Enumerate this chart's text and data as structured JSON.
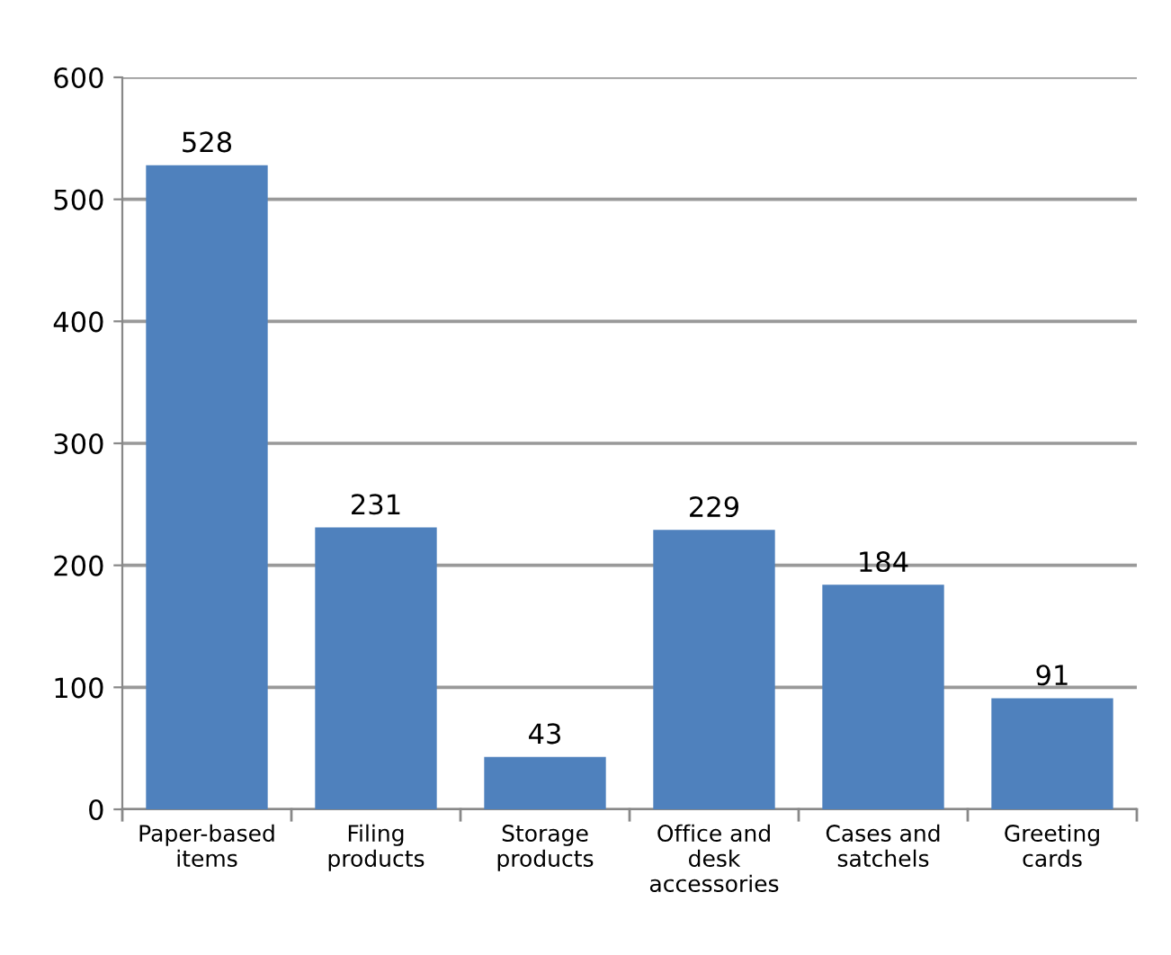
{
  "chart_data": {
    "type": "bar",
    "categories": [
      "Paper-based\nitems",
      "Filing\nproducts",
      "Storage\nproducts",
      "Office and\ndesk\naccessories",
      "Cases and\nsatchels",
      "Greeting\ncards"
    ],
    "values": [
      528,
      231,
      43,
      229,
      184,
      91
    ],
    "color": "#4f81bd",
    "ylim": [
      0,
      600
    ],
    "yticks": [
      0,
      100,
      200,
      300,
      400,
      500,
      600
    ],
    "grid": "y",
    "data_labels": true
  }
}
